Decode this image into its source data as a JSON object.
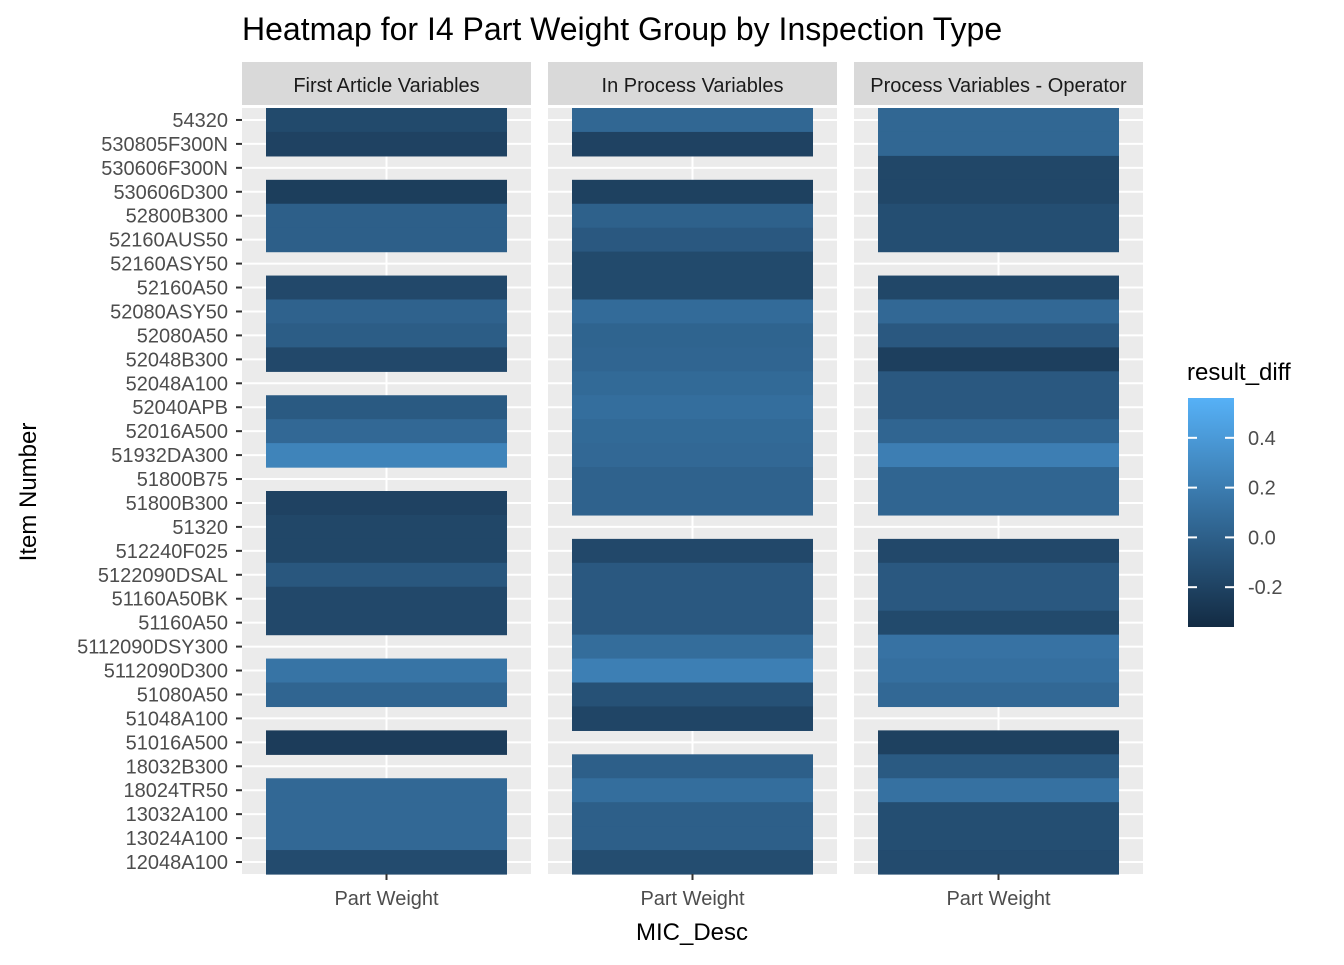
{
  "chart_data": {
    "type": "heatmap",
    "title": "Heatmap for I4 Part Weight Group by Inspection Type",
    "xlabel": "MIC_Desc",
    "ylabel": "Item Number",
    "x_category": "Part Weight",
    "facets": [
      "First Article Variables",
      "In Process Variables",
      "Process Variables - Operator"
    ],
    "items": [
      "54320",
      "530805F300N",
      "530606F300N",
      "530606D300",
      "52800B300",
      "52160AUS50",
      "52160ASY50",
      "52160A50",
      "52080ASY50",
      "52080A50",
      "52048B300",
      "52048A100",
      "52040APB",
      "52016A500",
      "51932DA300",
      "51800B75",
      "51800B300",
      "51320",
      "512240F025",
      "5122090DSAL",
      "51160A50BK",
      "51160A50",
      "5112090DSY300",
      "5112090D300",
      "51080A50",
      "51048A100",
      "51016A500",
      "18032B300",
      "18024TR50",
      "13032A100",
      "13024A100",
      "12048A100"
    ],
    "values": [
      [
        -0.15,
        -0.2,
        null,
        -0.23,
        0.0,
        0.0,
        null,
        -0.16,
        0.02,
        -0.02,
        -0.16,
        null,
        -0.04,
        0.06,
        0.25,
        null,
        -0.2,
        -0.17,
        -0.17,
        -0.06,
        -0.16,
        -0.16,
        null,
        0.14,
        0.04,
        null,
        -0.24,
        null,
        0.06,
        0.06,
        0.06,
        -0.14
      ],
      [
        0.05,
        -0.2,
        null,
        -0.21,
        0.01,
        -0.05,
        -0.15,
        -0.15,
        0.08,
        0.03,
        0.04,
        0.07,
        0.1,
        0.07,
        0.06,
        0.02,
        0.02,
        null,
        -0.16,
        -0.05,
        -0.05,
        -0.05,
        0.09,
        0.22,
        -0.1,
        -0.18,
        null,
        0.0,
        0.1,
        0.0,
        0.0,
        -0.13
      ],
      [
        0.05,
        0.05,
        -0.17,
        -0.17,
        -0.12,
        -0.12,
        null,
        -0.17,
        0.06,
        -0.05,
        -0.22,
        -0.05,
        -0.05,
        0.04,
        0.21,
        0.04,
        0.04,
        null,
        -0.16,
        -0.05,
        -0.05,
        -0.15,
        0.13,
        0.11,
        0.06,
        null,
        -0.21,
        -0.04,
        0.12,
        -0.12,
        -0.12,
        -0.14
      ]
    ],
    "legend": {
      "title": "result_diff",
      "ticks": [
        "0.4",
        "0.2",
        "0.0",
        "-0.2"
      ],
      "tick_values": [
        0.4,
        0.2,
        0.0,
        -0.2
      ],
      "limits": [
        -0.36,
        0.56
      ],
      "placement": "right"
    }
  }
}
